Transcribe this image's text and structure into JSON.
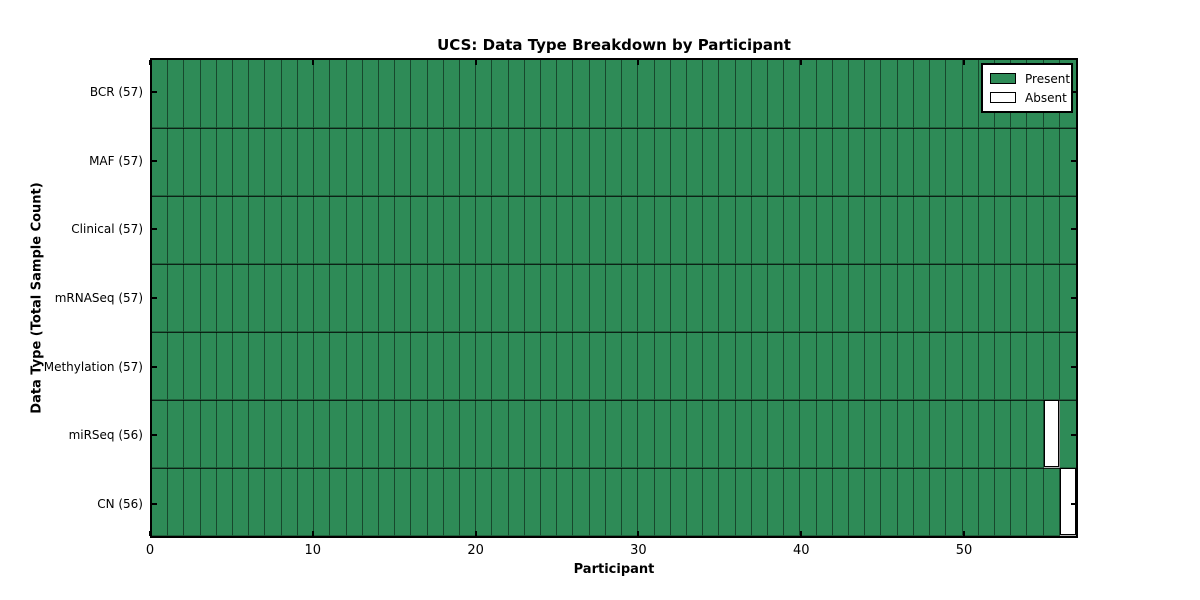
{
  "chart_data": {
    "type": "heatmap",
    "title": "UCS: Data Type Breakdown by Participant",
    "xlabel": "Participant",
    "ylabel": "Data Type (Total Sample Count)",
    "x_ticks": [
      0,
      10,
      20,
      30,
      40,
      50
    ],
    "x_range": [
      0,
      57
    ],
    "n_participants": 57,
    "n_rows": 7,
    "grid": false,
    "legend_position": "upper right",
    "colors": {
      "present": "#2E8B57",
      "absent": "#FFFFFF",
      "cell_edge": "#000000"
    },
    "rows": [
      {
        "data_type": "BCR",
        "total_samples": 57,
        "label": "BCR (57)",
        "absent_participants": []
      },
      {
        "data_type": "MAF",
        "total_samples": 57,
        "label": "MAF (57)",
        "absent_participants": []
      },
      {
        "data_type": "Clinical",
        "total_samples": 57,
        "label": "Clinical (57)",
        "absent_participants": []
      },
      {
        "data_type": "mRNASeq",
        "total_samples": 57,
        "label": "mRNASeq (57)",
        "absent_participants": []
      },
      {
        "data_type": "Methylation",
        "total_samples": 57,
        "label": "Methylation (57)",
        "absent_participants": []
      },
      {
        "data_type": "miRSeq",
        "total_samples": 56,
        "label": "miRSeq (56)",
        "absent_participants": [
          55
        ]
      },
      {
        "data_type": "CN",
        "total_samples": 56,
        "label": "CN (56)",
        "absent_participants": [
          56
        ]
      }
    ],
    "legend": {
      "items": [
        {
          "label": "Present",
          "color": "#2E8B57"
        },
        {
          "label": "Absent",
          "color": "#FFFFFF"
        }
      ]
    }
  }
}
